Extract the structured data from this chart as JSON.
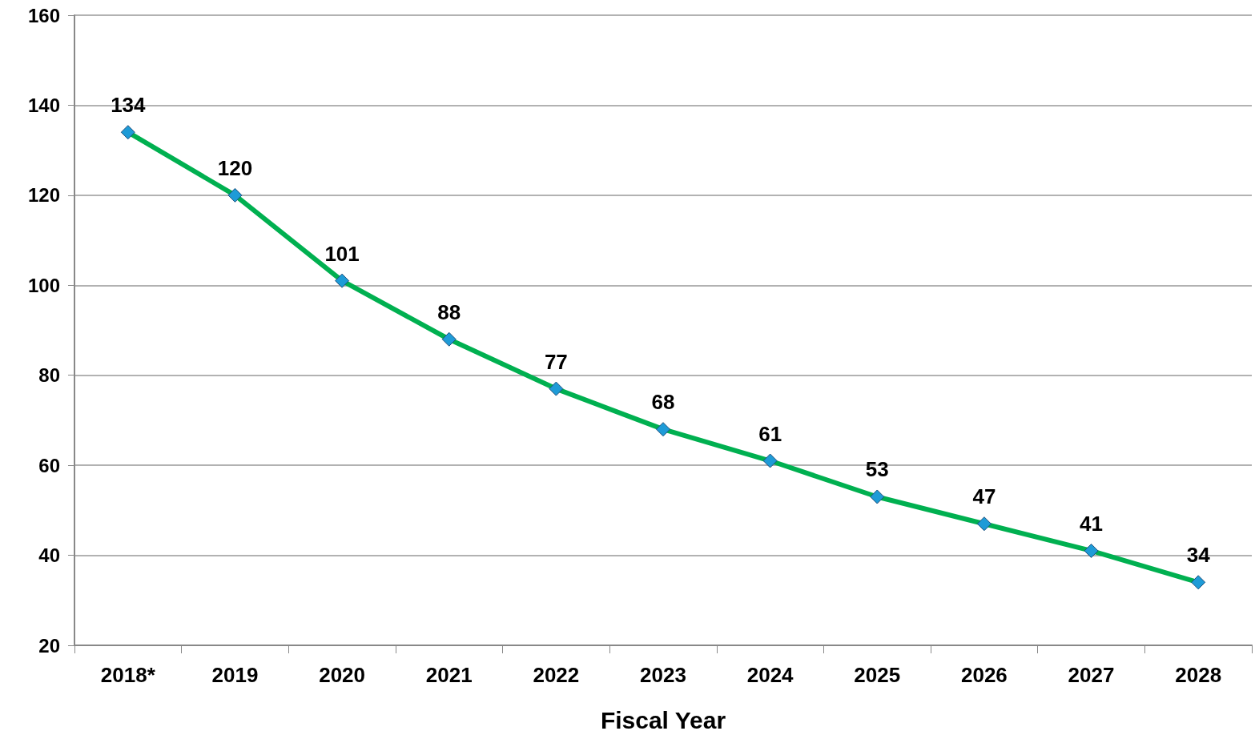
{
  "chart_data": {
    "type": "line",
    "xlabel": "Fiscal Year",
    "categories": [
      "2018*",
      "2019",
      "2020",
      "2021",
      "2022",
      "2023",
      "2024",
      "2025",
      "2026",
      "2027",
      "2028"
    ],
    "series": [
      {
        "color": "#00b050",
        "values": [
          134,
          120,
          101,
          88,
          77,
          68,
          61,
          53,
          47,
          41,
          34
        ]
      }
    ],
    "ylim": [
      20,
      160
    ],
    "yticks": [
      20,
      40,
      60,
      80,
      100,
      120,
      140,
      160
    ],
    "grid": "y",
    "marker": "diamond",
    "data_labels": true,
    "line_style": "solid"
  }
}
